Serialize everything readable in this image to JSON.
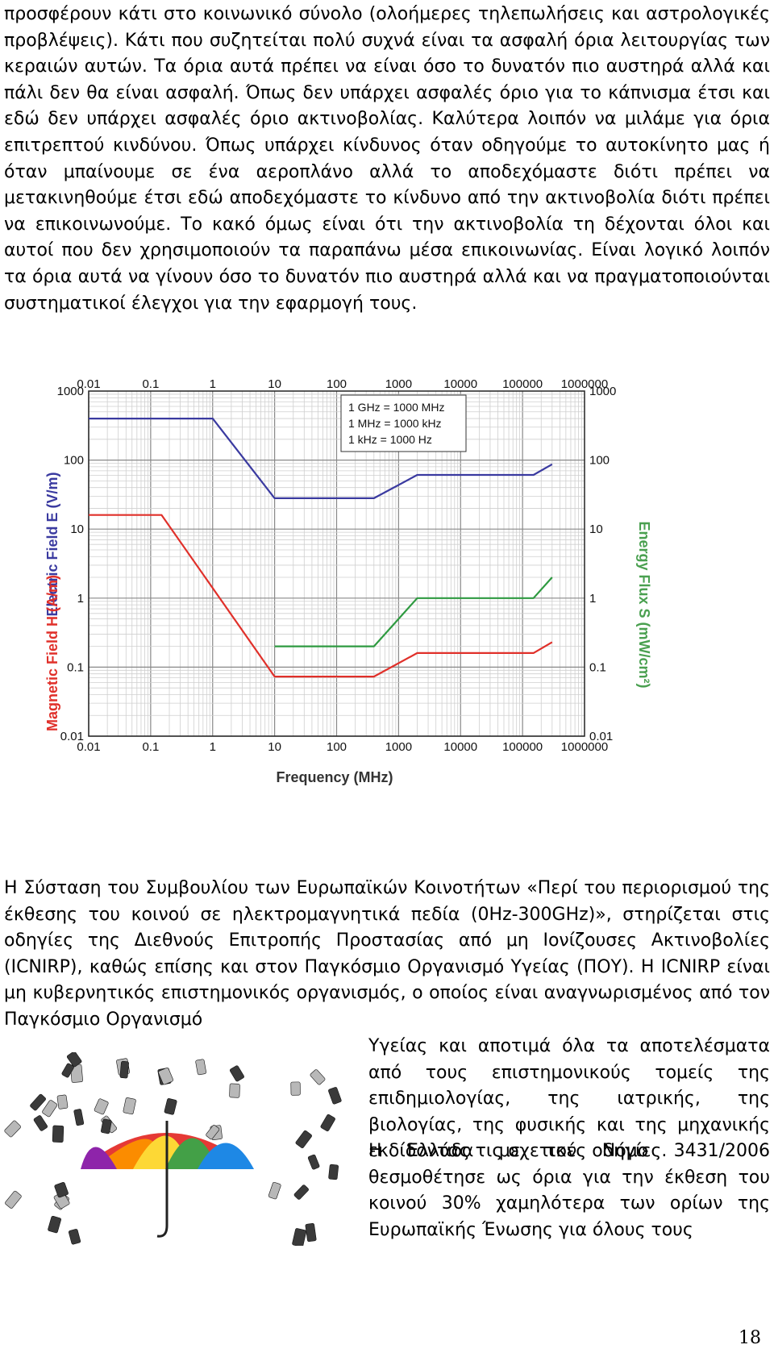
{
  "text": {
    "p1": "προσφέρουν κάτι στο κοινωνικό σύνολο (ολοήμερες τηλεπωλήσεις και αστρολογικές προβλέψεις). Κάτι που συζητείται πολύ συχνά είναι τα ασφαλή όρια λειτουργίας των κεραιών αυτών. Τα όρια αυτά πρέπει να είναι όσο το δυνατόν πιο αυστηρά αλλά και πάλι δεν θα είναι ασφαλή. Όπως δεν υπάρχει ασφαλές όριο για το κάπνισμα έτσι και εδώ δεν υπάρχει ασφαλές όριο ακτινοβολίας. Καλύτερα λοιπόν να μιλάμε για όρια επιτρεπτού κινδύνου. Όπως υπάρχει κίνδυνος όταν οδηγούμε το αυτοκίνητο μας ή όταν μπαίνουμε σε ένα αεροπλάνο αλλά το αποδεχόμαστε διότι πρέπει να μετακινηθούμε έτσι εδώ αποδεχόμαστε το κίνδυνο από την ακτινοβολία διότι πρέπει να επικοινωνούμε. Το κακό όμως είναι ότι την ακτινοβολία τη δέχονται όλοι και αυτοί που δεν χρησιμοποιούν τα παραπάνω μέσα επικοινωνίας. Είναι λογικό λοιπόν τα όρια αυτά να γίνουν όσο το δυνατόν πιο αυστηρά αλλά και να πραγματοποιούνται συστηματικοί έλεγχοι για την εφαρμογή τους.",
    "p3": "Η Σύσταση του Συμβουλίου των Ευρωπαϊκών Κοινοτήτων «Περί του περιορισμού της έκθεσης του κοινού σε ηλεκτρομαγνητικά πεδία (0Hz-300GHz)», στηρίζεται στις οδηγίες της Διεθνούς Επιτροπής Προστασίας από μη Ιονίζουσες Ακτινοβολίες (ICNIRP), καθώς επίσης και στον Παγκόσμιο Οργανισμό Υγείας (ΠΟΥ). Η ICNIRP είναι μη κυβερνητικός επιστημονικός οργανισμός, ο οποίος είναι αναγνωρισμένος από τον Παγκόσμιο Οργανισμό",
    "p4": "Υγείας και αποτιμά όλα τα αποτελέσματα από τους επιστημονικούς τομείς της επιδημιολογίας, της ιατρικής, της βιολογίας, της φυσικής και της μηχανικής εκδίδοντας τις σχετικές οδηγίες.",
    "p5": "Η Ελλάδα με τον Νόμο 3431/2006 θεσμοθέτησε ως όρια για την έκθεση του κοινού 30% χαμηλότερα των ορίων της Ευρωπαϊκής Ένωσης για όλους τους",
    "page_number": "18"
  },
  "chart_data": {
    "type": "line",
    "xscale": "log",
    "yscale": "log",
    "xlim": [
      0.01,
      1000000
    ],
    "ylim": [
      0.01,
      1000
    ],
    "xticks": [
      "0.01",
      "0.1",
      "1",
      "10",
      "100",
      "1000",
      "10000",
      "100000",
      "1000000"
    ],
    "yticks": [
      "1000",
      "100",
      "10",
      "1",
      "0.1",
      "0.01"
    ],
    "xlabel": "Frequency (MHz)",
    "ylabel_left_top": "Electric Field E (V/m)",
    "ylabel_left_bottom": "Magnetic Field H (A/m)",
    "ylabel_right": "Energy Flux S (mW/cm²)",
    "grid": true,
    "notes": [
      "1 GHz = 1000 MHz",
      "1 MHz = 1000 kHz",
      "1 kHz = 1000 Hz"
    ],
    "series": [
      {
        "color": "#3a3aa0",
        "x": [
          0.01,
          1,
          10,
          400,
          2000,
          150000,
          300000
        ],
        "y": [
          400,
          400,
          28,
          28,
          61,
          61,
          87
        ]
      },
      {
        "color": "#e0302a",
        "x": [
          0.01,
          0.15,
          10,
          400,
          2000,
          150000,
          300000
        ],
        "y": [
          16,
          16,
          0.073,
          0.073,
          0.16,
          0.16,
          0.23
        ]
      },
      {
        "color": "#2e9a40",
        "x": [
          10,
          400,
          2000,
          150000,
          300000
        ],
        "y": [
          0.2,
          0.2,
          1,
          1,
          2
        ]
      }
    ],
    "colors": {
      "left_top_label": "#3a3aa0",
      "left_bottom_label": "#e0302a",
      "right_label": "#4aa050"
    }
  },
  "image": {
    "icon": "umbrella-icon",
    "colors": [
      "#e53935",
      "#fb8c00",
      "#fdd835",
      "#43a047",
      "#1e88e5",
      "#8e24aa"
    ]
  }
}
